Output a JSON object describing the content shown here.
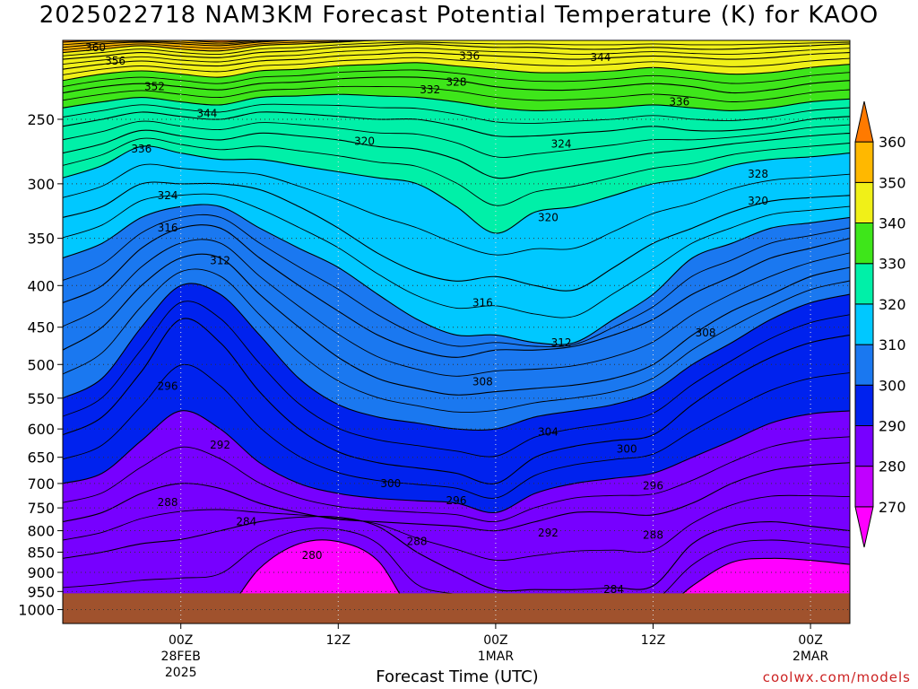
{
  "chart_data": {
    "type": "time-height contour",
    "title": "2025022718 NAM3KM Forecast Potential Temperature (K) for KAOO",
    "xlabel": "Forecast Time (UTC)",
    "ylabel": "",
    "credit": "coolwx.com/models",
    "x_range_hours": [
      -3,
      57
    ],
    "x_ticks": [
      {
        "hour": 6,
        "lines": [
          "00Z",
          "28FEB",
          "2025"
        ]
      },
      {
        "hour": 18,
        "lines": [
          "12Z"
        ]
      },
      {
        "hour": 30,
        "lines": [
          "00Z",
          "1MAR"
        ]
      },
      {
        "hour": 42,
        "lines": [
          "12Z"
        ]
      },
      {
        "hour": 54,
        "lines": [
          "00Z",
          "2MAR"
        ]
      }
    ],
    "y_scale": "log",
    "y_range_hPa": [
      1040,
      200
    ],
    "y_ticks": [
      250,
      300,
      350,
      400,
      450,
      500,
      550,
      600,
      650,
      700,
      750,
      800,
      850,
      900,
      950,
      1000
    ],
    "grid": true,
    "ground_level_hPa": 955,
    "colorbar": {
      "levels": [
        270,
        280,
        290,
        300,
        310,
        320,
        330,
        340,
        350,
        360
      ],
      "colors": [
        "#ff00ff",
        "#c000ff",
        "#7700ff",
        "#0022ee",
        "#1a78f0",
        "#00c8ff",
        "#00f0a8",
        "#3ee61a",
        "#f0f018",
        "#ffb800",
        "#ff7a00"
      ],
      "placement": "right"
    },
    "time_hours": [
      -3,
      0,
      3,
      6,
      9,
      12,
      15,
      18,
      21,
      24,
      27,
      30,
      33,
      36,
      39,
      42,
      45,
      48,
      51,
      54,
      57
    ],
    "levels": [
      {
        "theta": 280,
        "p": [
          1020,
          1020,
          1020,
          1020,
          1020,
          890,
          830,
          825,
          870,
          1020,
          1020,
          1020,
          1020,
          1020,
          1020,
          1020,
          935,
          875,
          865,
          870,
          880
        ]
      },
      {
        "theta": 284,
        "p": [
          865,
          850,
          830,
          820,
          800,
          780,
          770,
          770,
          790,
          850,
          900,
          945,
          945,
          945,
          940,
          935,
          830,
          790,
          780,
          790,
          800
        ]
      },
      {
        "theta": 288,
        "p": [
          780,
          760,
          720,
          700,
          710,
          740,
          760,
          775,
          780,
          785,
          790,
          800,
          780,
          760,
          760,
          765,
          740,
          700,
          675,
          665,
          660
        ]
      },
      {
        "theta": 292,
        "p": [
          700,
          680,
          620,
          570,
          600,
          660,
          700,
          720,
          730,
          735,
          740,
          760,
          720,
          700,
          690,
          680,
          650,
          620,
          590,
          575,
          570
        ]
      },
      {
        "theta": 296,
        "p": [
          610,
          580,
          510,
          440,
          470,
          540,
          600,
          640,
          660,
          670,
          680,
          700,
          650,
          630,
          620,
          610,
          560,
          520,
          490,
          470,
          460
        ]
      },
      {
        "theta": 300,
        "p": [
          550,
          520,
          450,
          400,
          410,
          460,
          520,
          560,
          580,
          590,
          600,
          600,
          580,
          570,
          560,
          540,
          500,
          470,
          440,
          420,
          410
        ]
      },
      {
        "theta": 304,
        "p": [
          480,
          450,
          400,
          370,
          370,
          410,
          450,
          490,
          520,
          535,
          545,
          540,
          535,
          530,
          520,
          500,
          460,
          430,
          410,
          390,
          380
        ]
      },
      {
        "theta": 308,
        "p": [
          420,
          400,
          360,
          340,
          340,
          370,
          400,
          430,
          460,
          480,
          490,
          480,
          480,
          475,
          460,
          440,
          410,
          390,
          370,
          360,
          350
        ]
      },
      {
        "theta": 312,
        "p": [
          370,
          355,
          330,
          320,
          320,
          340,
          360,
          380,
          410,
          440,
          460,
          460,
          470,
          470,
          440,
          410,
          370,
          355,
          340,
          335,
          330
        ]
      },
      {
        "theta": 316,
        "p": [
          330,
          320,
          300,
          300,
          300,
          305,
          320,
          340,
          365,
          385,
          395,
          390,
          400,
          405,
          380,
          355,
          340,
          325,
          315,
          312,
          310
        ]
      },
      {
        "theta": 320,
        "p": [
          295,
          285,
          270,
          275,
          280,
          280,
          285,
          290,
          295,
          300,
          320,
          345,
          325,
          320,
          310,
          300,
          295,
          285,
          280,
          278,
          275
        ]
      },
      {
        "theta": 324,
        "p": [
          275,
          268,
          258,
          262,
          265,
          260,
          262,
          265,
          270,
          272,
          280,
          295,
          290,
          285,
          280,
          275,
          272,
          268,
          265,
          262,
          260
        ]
      },
      {
        "theta": 328,
        "p": [
          255,
          250,
          245,
          248,
          250,
          245,
          246,
          248,
          250,
          250,
          255,
          262,
          262,
          260,
          258,
          255,
          258,
          258,
          255,
          250,
          248
        ]
      },
      {
        "theta": 332,
        "p": [
          242,
          238,
          235,
          238,
          240,
          235,
          234,
          233,
          234,
          235,
          238,
          242,
          244,
          243,
          242,
          240,
          242,
          244,
          242,
          238,
          236
        ]
      },
      {
        "theta": 336,
        "p": [
          232,
          228,
          226,
          228,
          230,
          226,
          225,
          223,
          222,
          222,
          224,
          228,
          230,
          230,
          228,
          226,
          228,
          232,
          230,
          226,
          224
        ]
      },
      {
        "theta": 340,
        "p": [
          224,
          220,
          218,
          220,
          222,
          218,
          217,
          215,
          214,
          213,
          215,
          217,
          219,
          219,
          218,
          216,
          218,
          220,
          219,
          216,
          214
        ]
      },
      {
        "theta": 344,
        "p": [
          217,
          214,
          212,
          214,
          215,
          212,
          211,
          209,
          208,
          207,
          208,
          209,
          210,
          211,
          210,
          209,
          210,
          211,
          210,
          208,
          207
        ]
      },
      {
        "theta": 348,
        "p": [
          211,
          209,
          207,
          209,
          210,
          207,
          206,
          204,
          203,
          202,
          203,
          204,
          204,
          205,
          205,
          204,
          205,
          205,
          204,
          203,
          202
        ]
      },
      {
        "theta": 352,
        "p": [
          207,
          205,
          203,
          205,
          206,
          203,
          202,
          201,
          200,
          200,
          200,
          200,
          200,
          200,
          200,
          200,
          200,
          200,
          200,
          200,
          200
        ]
      },
      {
        "theta": 356,
        "p": [
          204,
          202,
          201,
          202,
          203,
          201,
          200,
          200,
          200,
          200,
          200,
          200,
          200,
          200,
          200,
          200,
          200,
          200,
          200,
          200,
          200
        ]
      },
      {
        "theta": 360,
        "p": [
          201,
          200,
          200,
          200,
          201,
          200,
          200,
          200,
          200,
          200,
          200,
          200,
          200,
          200,
          200,
          200,
          200,
          200,
          200,
          200,
          200
        ]
      }
    ],
    "contour_labels": [
      {
        "text": "360",
        "hour": -0.5,
        "p": 204
      },
      {
        "text": "356",
        "hour": 1.0,
        "p": 212
      },
      {
        "text": "352",
        "hour": 4.0,
        "p": 228
      },
      {
        "text": "344",
        "hour": 8.0,
        "p": 246
      },
      {
        "text": "336",
        "hour": 3.0,
        "p": 272
      },
      {
        "text": "324",
        "hour": 5.0,
        "p": 310
      },
      {
        "text": "316",
        "hour": 5.0,
        "p": 340
      },
      {
        "text": "312",
        "hour": 9.0,
        "p": 373
      },
      {
        "text": "296",
        "hour": 5.0,
        "p": 532
      },
      {
        "text": "292",
        "hour": 9.0,
        "p": 628
      },
      {
        "text": "288",
        "hour": 5.0,
        "p": 738
      },
      {
        "text": "284",
        "hour": 11.0,
        "p": 780
      },
      {
        "text": "280",
        "hour": 16.0,
        "p": 858
      },
      {
        "text": "336",
        "hour": 28.0,
        "p": 209
      },
      {
        "text": "332",
        "hour": 25.0,
        "p": 230
      },
      {
        "text": "328",
        "hour": 27.0,
        "p": 225
      },
      {
        "text": "320",
        "hour": 20.0,
        "p": 266
      },
      {
        "text": "344",
        "hour": 38.0,
        "p": 210
      },
      {
        "text": "336",
        "hour": 44.0,
        "p": 238
      },
      {
        "text": "324",
        "hour": 35.0,
        "p": 268
      },
      {
        "text": "328",
        "hour": 50.0,
        "p": 292
      },
      {
        "text": "320",
        "hour": 50.0,
        "p": 315
      },
      {
        "text": "320",
        "hour": 34.0,
        "p": 330
      },
      {
        "text": "316",
        "hour": 29.0,
        "p": 420
      },
      {
        "text": "312",
        "hour": 35.0,
        "p": 470
      },
      {
        "text": "308",
        "hour": 29.0,
        "p": 525
      },
      {
        "text": "308",
        "hour": 46.0,
        "p": 457
      },
      {
        "text": "304",
        "hour": 34.0,
        "p": 605
      },
      {
        "text": "300",
        "hour": 40.0,
        "p": 635
      },
      {
        "text": "300",
        "hour": 22.0,
        "p": 700
      },
      {
        "text": "296",
        "hour": 27.0,
        "p": 735
      },
      {
        "text": "296",
        "hour": 42.0,
        "p": 705
      },
      {
        "text": "292",
        "hour": 34.0,
        "p": 805
      },
      {
        "text": "288",
        "hour": 24.0,
        "p": 825
      },
      {
        "text": "288",
        "hour": 42.0,
        "p": 810
      },
      {
        "text": "284",
        "hour": 39.0,
        "p": 945
      }
    ]
  }
}
